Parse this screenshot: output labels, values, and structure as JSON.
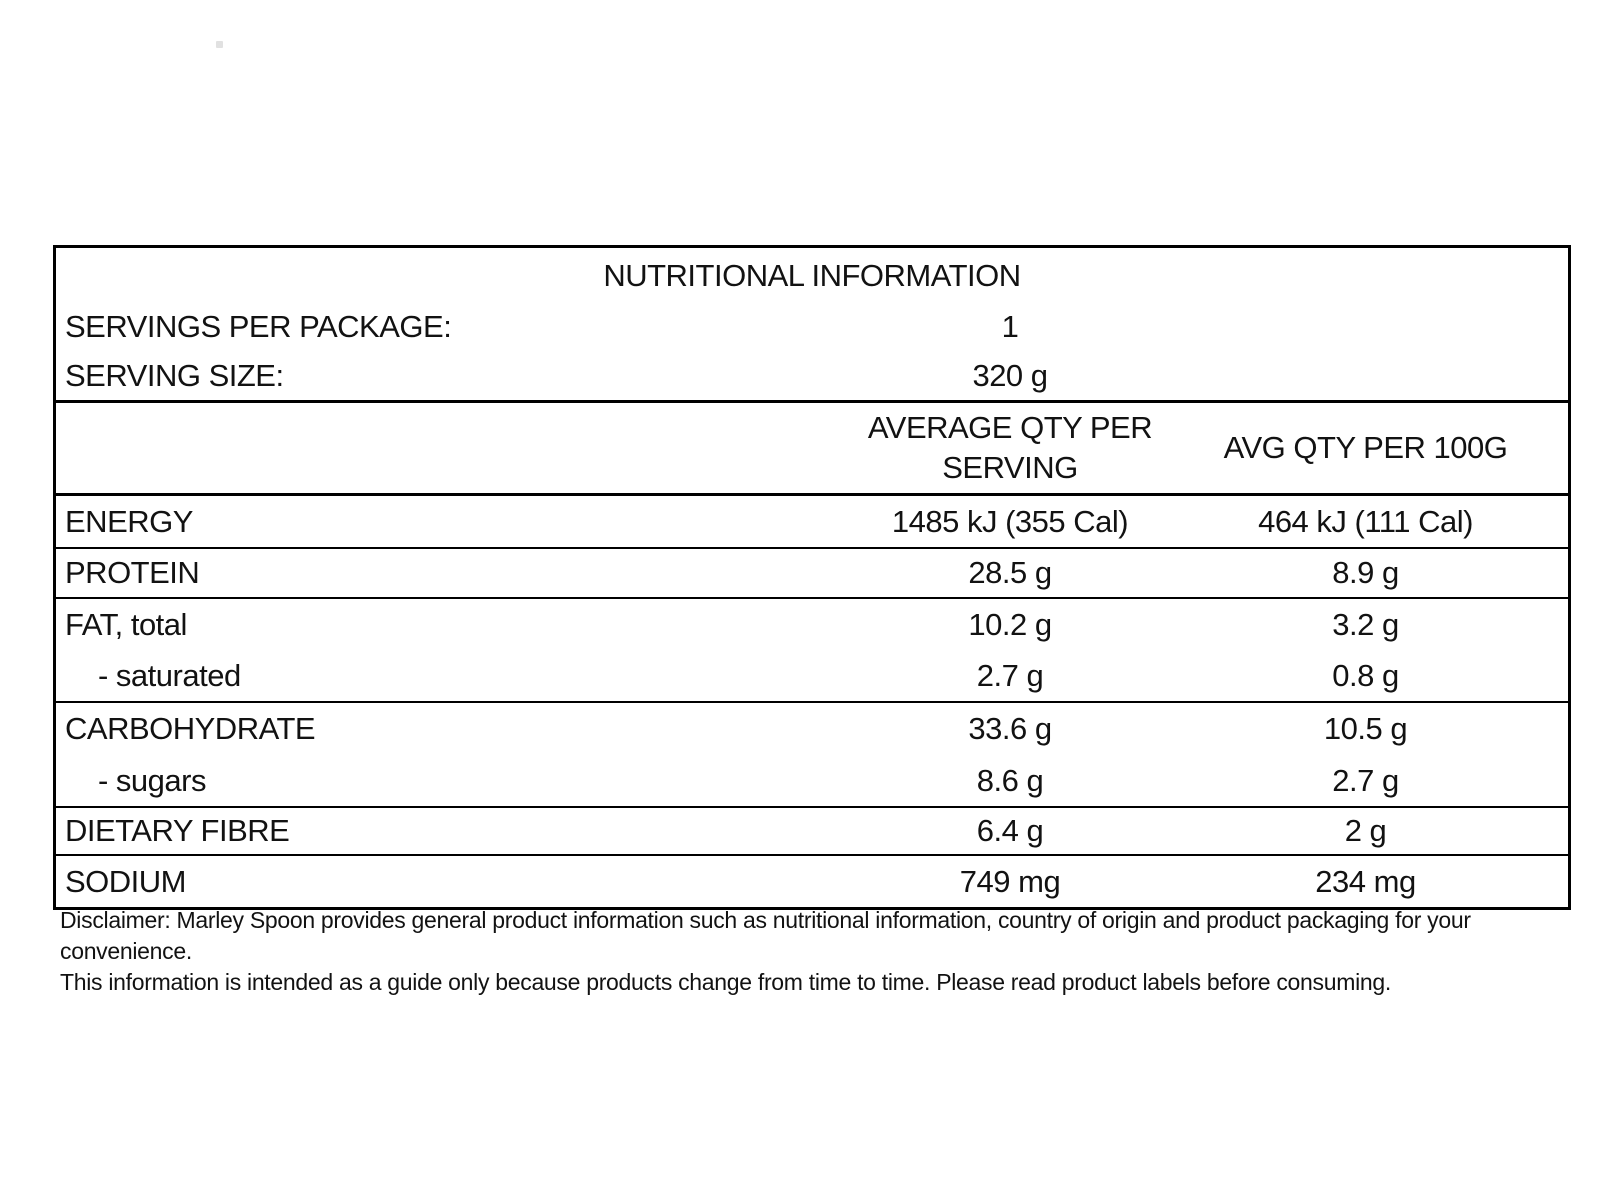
{
  "table": {
    "title": "NUTRITIONAL INFORMATION",
    "meta_rows": [
      {
        "label": "SERVINGS PER PACKAGE:",
        "value": "1"
      },
      {
        "label": "SERVING SIZE:",
        "value": "320 g"
      }
    ],
    "columns": {
      "per_serving": "AVERAGE QTY PER SERVING",
      "per_100g": "AVG QTY PER 100G"
    },
    "nutrient_rows": [
      {
        "label": "ENERGY",
        "per_serving": "1485 kJ (355 Cal)",
        "per_100g": "464 kJ (111 Cal)"
      },
      {
        "label": "PROTEIN",
        "per_serving": "28.5 g",
        "per_100g": "8.9 g"
      },
      {
        "label": "FAT, total",
        "per_serving": "10.2 g",
        "per_100g": "3.2 g"
      },
      {
        "label": "- saturated",
        "per_serving": "2.7 g",
        "per_100g": "0.8 g"
      },
      {
        "label": "CARBOHYDRATE",
        "per_serving": "33.6 g",
        "per_100g": "10.5 g"
      },
      {
        "label": "- sugars",
        "per_serving": "8.6 g",
        "per_100g": "2.7 g"
      },
      {
        "label": "DIETARY FIBRE",
        "per_serving": "6.4 g",
        "per_100g": "2 g"
      },
      {
        "label": "SODIUM",
        "per_serving": "749 mg",
        "per_100g": "234 mg"
      }
    ],
    "border_color": "#000000"
  },
  "disclaimer": {
    "lines": [
      "Disclaimer: Marley Spoon provides general product information such as nutritional information, country of origin and product packaging for your convenience.",
      "This information is intended as a guide only because products change from time to time. Please read product labels before consuming."
    ]
  }
}
